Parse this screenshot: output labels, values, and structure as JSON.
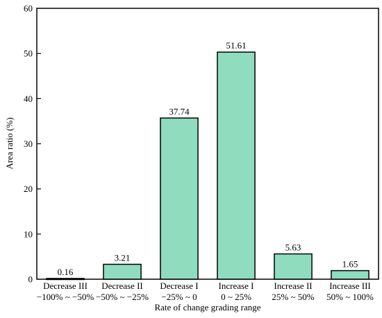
{
  "chart_data": {
    "type": "bar",
    "categories": [
      [
        "Decrease III",
        "−100% ~ −50%"
      ],
      [
        "Decrease II",
        "−50% ~ −25%"
      ],
      [
        "Decrease I",
        "−25% ~ 0"
      ],
      [
        "Increase I",
        "0 ~ 25%"
      ],
      [
        "Increase II",
        "25% ~ 50%"
      ],
      [
        "Increase III",
        "50% ~ 100%"
      ]
    ],
    "values": [
      0.16,
      3.21,
      37.74,
      51.61,
      5.63,
      1.65
    ],
    "bar_heights_approx": [
      0.16,
      3.3,
      35.7,
      50.3,
      5.6,
      1.9
    ],
    "data_labels": [
      "0.16",
      "3.21",
      "37.74",
      "51.61",
      "5.63",
      "1.65"
    ],
    "title": "",
    "xlabel": "Rate of change grading range",
    "ylabel": "Area ratio (%)",
    "ylim": [
      0,
      60
    ],
    "yticks": [
      0,
      10,
      20,
      30,
      40,
      50,
      60
    ],
    "grid": false,
    "legend": "none",
    "bar_color": "#8fdcbf",
    "edge_color": "#000000"
  }
}
